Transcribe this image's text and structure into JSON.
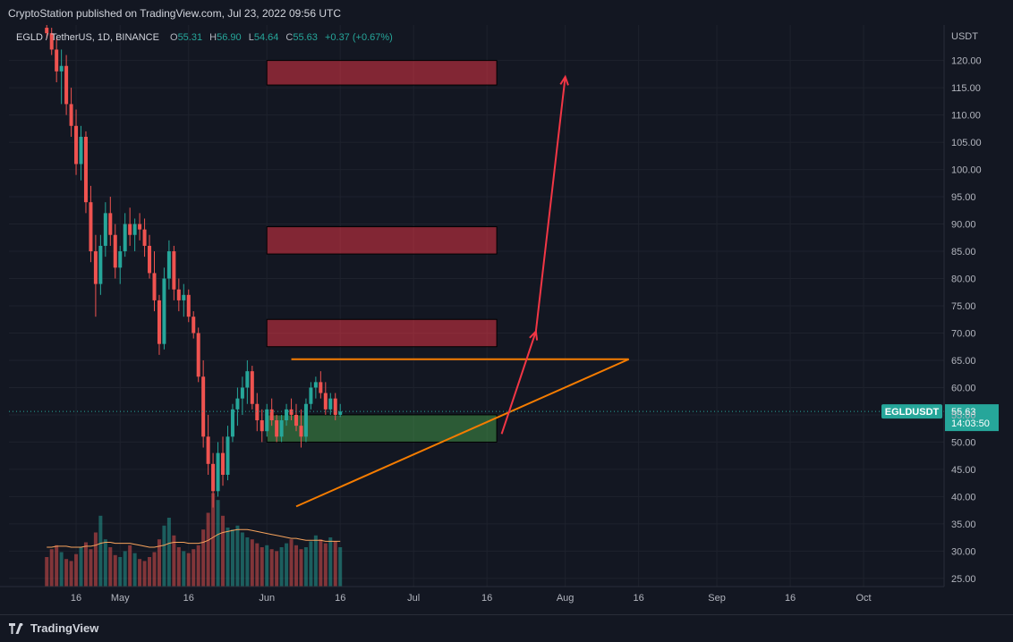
{
  "header": {
    "publisher_text": "CryptoStation published on TradingView.com, Jul 23, 2022 09:56 UTC"
  },
  "footer": {
    "brand": "TradingView"
  },
  "colors": {
    "background": "#131722",
    "grid": "#1e222d",
    "candle_up": "#26a69a",
    "candle_down": "#ef5350",
    "resistance_zone": "#f23645",
    "support_zone": "#4caf50",
    "trendline": "#f57c00",
    "arrow": "#f23645",
    "price_label": "#26a69a"
  },
  "chart_data": {
    "type": "candlestick",
    "legend": {
      "symbol": "EGLD / TetherUS, 1D, BINANCE",
      "o_label": "O",
      "open": "55.31",
      "h_label": "H",
      "high": "56.90",
      "l_label": "L",
      "low": "54.64",
      "c_label": "C",
      "close": "55.63",
      "change": "+0.37 (+0.67%)"
    },
    "y_axis": {
      "currency": "USDT",
      "ylim": [
        23.5,
        126.5
      ],
      "ticks": [
        "120.00",
        "115.00",
        "110.00",
        "105.00",
        "100.00",
        "95.00",
        "90.00",
        "85.00",
        "80.00",
        "75.00",
        "70.00",
        "65.00",
        "60.00",
        "55.00",
        "50.00",
        "45.00",
        "40.00",
        "35.00",
        "30.00",
        "25.00"
      ],
      "tick_values": [
        120,
        115,
        110,
        105,
        100,
        95,
        90,
        85,
        80,
        75,
        70,
        65,
        60,
        55,
        50,
        45,
        40,
        35,
        30,
        25
      ]
    },
    "x_axis": {
      "ticks": [
        {
          "label": "16",
          "day": -60
        },
        {
          "label": "May",
          "day": -51
        },
        {
          "label": "16",
          "day": -37
        },
        {
          "label": "Jun",
          "day": -21
        },
        {
          "label": "16",
          "day": -6
        },
        {
          "label": "Jul",
          "day": 9
        },
        {
          "label": "16",
          "day": 24
        },
        {
          "label": "Aug",
          "day": 40
        },
        {
          "label": "16",
          "day": 55
        },
        {
          "label": "Sep",
          "day": 71
        },
        {
          "label": "16",
          "day": 86
        },
        {
          "label": "Oct",
          "day": 101
        }
      ]
    },
    "current_price": {
      "symbol": "EGLDUSDT",
      "value": 55.63,
      "value_label": "55.63",
      "countdown": "14:03:50"
    },
    "zones": [
      {
        "type": "resistance",
        "day_start": -21,
        "day_end": 26,
        "low": 115.5,
        "high": 120
      },
      {
        "type": "resistance",
        "day_start": -21,
        "day_end": 26,
        "low": 84.5,
        "high": 89.5
      },
      {
        "type": "resistance",
        "day_start": -21,
        "day_end": 26,
        "low": 67.5,
        "high": 72.5
      },
      {
        "type": "support",
        "day_start": -21,
        "day_end": 26,
        "low": 50,
        "high": 55
      }
    ],
    "trendlines": [
      {
        "kind": "horizontal",
        "day_start": -16,
        "day_end": 53,
        "value": 65.2
      },
      {
        "kind": "ascending",
        "day_start": -15,
        "value_start": 38.2,
        "day_end": 53,
        "value_end": 65.2
      }
    ],
    "projection_path": [
      {
        "day": 27,
        "value": 51.5
      },
      {
        "day": 34,
        "value": 70.3
      },
      {
        "day": 40,
        "value": 117
      }
    ],
    "candles": [
      {
        "day": -66,
        "o": 126,
        "h": 127,
        "l": 124,
        "c": 125
      },
      {
        "day": -65,
        "o": 125,
        "h": 126,
        "l": 121,
        "c": 122
      },
      {
        "day": -64,
        "o": 122,
        "h": 124,
        "l": 116,
        "c": 118
      },
      {
        "day": -63,
        "o": 118,
        "h": 122,
        "l": 112,
        "c": 119
      },
      {
        "day": -62,
        "o": 119,
        "h": 121,
        "l": 110,
        "c": 112
      },
      {
        "day": -61,
        "o": 112,
        "h": 115,
        "l": 106,
        "c": 108
      },
      {
        "day": -60,
        "o": 108,
        "h": 111,
        "l": 99,
        "c": 101
      },
      {
        "day": -59,
        "o": 101,
        "h": 108,
        "l": 98,
        "c": 106
      },
      {
        "day": -58,
        "o": 106,
        "h": 107,
        "l": 92,
        "c": 94
      },
      {
        "day": -57,
        "o": 94,
        "h": 97,
        "l": 83,
        "c": 85
      },
      {
        "day": -56,
        "o": 85,
        "h": 88,
        "l": 73,
        "c": 79
      },
      {
        "day": -55,
        "o": 79,
        "h": 88,
        "l": 77,
        "c": 86
      },
      {
        "day": -54,
        "o": 86,
        "h": 94,
        "l": 84,
        "c": 92
      },
      {
        "day": -53,
        "o": 92,
        "h": 95,
        "l": 86,
        "c": 88
      },
      {
        "day": -52,
        "o": 88,
        "h": 90,
        "l": 80,
        "c": 82
      },
      {
        "day": -51,
        "o": 82,
        "h": 86,
        "l": 79,
        "c": 85
      },
      {
        "day": -50,
        "o": 85,
        "h": 92,
        "l": 84,
        "c": 90
      },
      {
        "day": -49,
        "o": 90,
        "h": 93,
        "l": 86,
        "c": 88
      },
      {
        "day": -48,
        "o": 88,
        "h": 91,
        "l": 85,
        "c": 90
      },
      {
        "day": -47,
        "o": 90,
        "h": 92,
        "l": 87,
        "c": 89
      },
      {
        "day": -46,
        "o": 89,
        "h": 91,
        "l": 84,
        "c": 86
      },
      {
        "day": -45,
        "o": 86,
        "h": 88,
        "l": 80,
        "c": 81
      },
      {
        "day": -44,
        "o": 81,
        "h": 85,
        "l": 74,
        "c": 76
      },
      {
        "day": -43,
        "o": 76,
        "h": 77,
        "l": 66,
        "c": 68
      },
      {
        "day": -42,
        "o": 68,
        "h": 82,
        "l": 67,
        "c": 80
      },
      {
        "day": -41,
        "o": 80,
        "h": 87,
        "l": 78,
        "c": 85
      },
      {
        "day": -40,
        "o": 85,
        "h": 86,
        "l": 76,
        "c": 78
      },
      {
        "day": -39,
        "o": 78,
        "h": 80,
        "l": 74,
        "c": 76
      },
      {
        "day": -38,
        "o": 76,
        "h": 79,
        "l": 73,
        "c": 77
      },
      {
        "day": -37,
        "o": 77,
        "h": 78,
        "l": 72,
        "c": 73
      },
      {
        "day": -36,
        "o": 73,
        "h": 74,
        "l": 69,
        "c": 70
      },
      {
        "day": -35,
        "o": 70,
        "h": 71,
        "l": 61,
        "c": 62
      },
      {
        "day": -34,
        "o": 62,
        "h": 65,
        "l": 49,
        "c": 51
      },
      {
        "day": -33,
        "o": 51,
        "h": 55,
        "l": 44,
        "c": 46
      },
      {
        "day": -32,
        "o": 46,
        "h": 48,
        "l": 38,
        "c": 41
      },
      {
        "day": -31,
        "o": 41,
        "h": 50,
        "l": 40,
        "c": 48
      },
      {
        "day": -30,
        "o": 48,
        "h": 51,
        "l": 42,
        "c": 44
      },
      {
        "day": -29,
        "o": 44,
        "h": 53,
        "l": 43,
        "c": 51
      },
      {
        "day": -28,
        "o": 51,
        "h": 57,
        "l": 50,
        "c": 56
      },
      {
        "day": -27,
        "o": 56,
        "h": 60,
        "l": 53,
        "c": 58
      },
      {
        "day": -26,
        "o": 58,
        "h": 62,
        "l": 55,
        "c": 60
      },
      {
        "day": -25,
        "o": 60,
        "h": 65,
        "l": 57,
        "c": 63
      },
      {
        "day": -24,
        "o": 63,
        "h": 64,
        "l": 56,
        "c": 57
      },
      {
        "day": -23,
        "o": 57,
        "h": 59,
        "l": 52,
        "c": 54
      },
      {
        "day": -22,
        "o": 54,
        "h": 56,
        "l": 50,
        "c": 52
      },
      {
        "day": -21,
        "o": 52,
        "h": 57,
        "l": 51,
        "c": 56
      },
      {
        "day": -20,
        "o": 56,
        "h": 58,
        "l": 53,
        "c": 54
      },
      {
        "day": -19,
        "o": 54,
        "h": 55,
        "l": 50,
        "c": 51
      },
      {
        "day": -18,
        "o": 51,
        "h": 55,
        "l": 50,
        "c": 54
      },
      {
        "day": -17,
        "o": 54,
        "h": 57,
        "l": 53,
        "c": 56
      },
      {
        "day": -16,
        "o": 56,
        "h": 58,
        "l": 54,
        "c": 55
      },
      {
        "day": -15,
        "o": 55,
        "h": 57,
        "l": 52,
        "c": 53
      },
      {
        "day": -14,
        "o": 53,
        "h": 56,
        "l": 49,
        "c": 51
      },
      {
        "day": -13,
        "o": 51,
        "h": 58,
        "l": 50,
        "c": 57
      },
      {
        "day": -12,
        "o": 57,
        "h": 61,
        "l": 56,
        "c": 60
      },
      {
        "day": -11,
        "o": 60,
        "h": 62,
        "l": 58,
        "c": 61
      },
      {
        "day": -10,
        "o": 61,
        "h": 63,
        "l": 58,
        "c": 59
      },
      {
        "day": -9,
        "o": 59,
        "h": 61,
        "l": 55,
        "c": 56
      },
      {
        "day": -8,
        "o": 56,
        "h": 59,
        "l": 55,
        "c": 58
      },
      {
        "day": -7,
        "o": 58,
        "h": 59,
        "l": 54,
        "c": 55
      },
      {
        "day": -6,
        "o": 55,
        "h": 57,
        "l": 54.6,
        "c": 55.6
      }
    ],
    "volume": {
      "ylim": [
        0,
        100
      ],
      "values": [
        30,
        38,
        42,
        35,
        28,
        26,
        33,
        40,
        45,
        38,
        55,
        72,
        48,
        40,
        32,
        30,
        36,
        42,
        34,
        28,
        26,
        30,
        35,
        48,
        62,
        70,
        52,
        40,
        36,
        34,
        38,
        42,
        58,
        75,
        95,
        88,
        72,
        60,
        58,
        62,
        55,
        50,
        48,
        44,
        40,
        42,
        38,
        36,
        40,
        44,
        48,
        42,
        38,
        40,
        46,
        52,
        48,
        44,
        50,
        46,
        40
      ],
      "ma_values": [
        40,
        40,
        41,
        41,
        41,
        40,
        40,
        40,
        41,
        41,
        42,
        44,
        45,
        45,
        44,
        44,
        44,
        44,
        43,
        42,
        41,
        40,
        40,
        41,
        42,
        44,
        45,
        45,
        45,
        44,
        44,
        44,
        45,
        47,
        50,
        53,
        55,
        56,
        57,
        58,
        58,
        58,
        57,
        56,
        55,
        54,
        53,
        52,
        51,
        50,
        49,
        49,
        48,
        47,
        47,
        47,
        47,
        46,
        46,
        46,
        46
      ]
    }
  }
}
